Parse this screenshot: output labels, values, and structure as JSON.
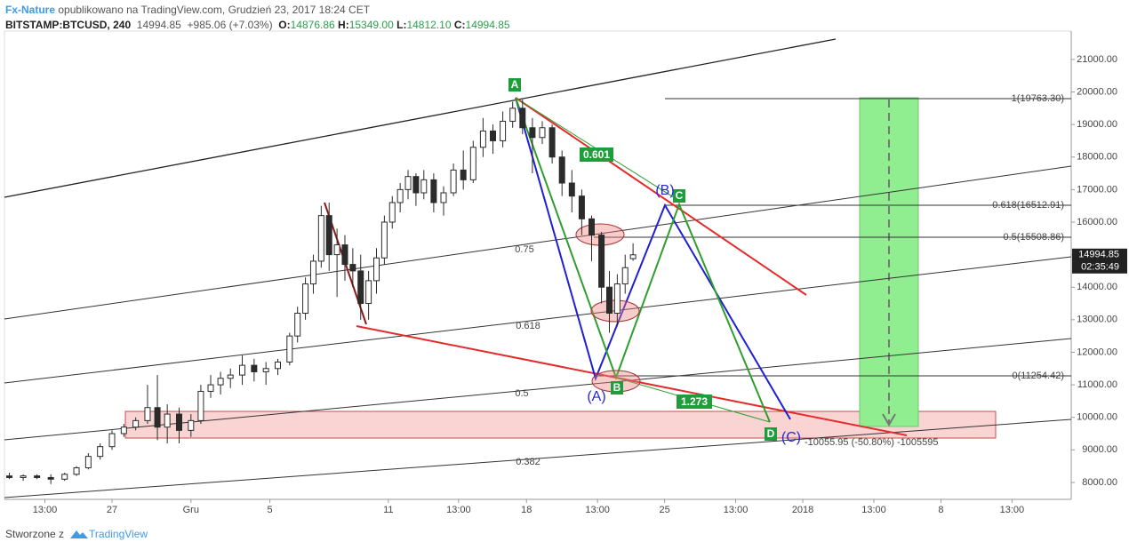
{
  "header": {
    "author": "Fx-Nature",
    "published": "opublikowano na TradingView.com, Grudzień 23, 2017 18:24 CET",
    "symbol": "BITSTAMP:BTCUSD, 240",
    "last": "14994.85",
    "change": "+985.06 (+7.03%)",
    "o_label": "O:",
    "o_value": "14876.86",
    "h_label": "H:",
    "h_value": "15349.00",
    "l_label": "L:",
    "l_value": "14812.10",
    "c_label": "C:",
    "c_value": "14994.85"
  },
  "chart_data": {
    "type": "candlestick",
    "x": [
      -9.2,
      -8.5,
      -7.8,
      -7.1,
      -6.4,
      -5.8,
      -5.2,
      -4.6,
      -4.0,
      -3.4,
      -2.8,
      -2.2,
      -1.7,
      -1.2,
      -0.6,
      0.0,
      0.5,
      1.0,
      1.5,
      2.0,
      2.6,
      3.2,
      3.8,
      4.4,
      5.0,
      5.4,
      5.8,
      6.2,
      6.6,
      7.0,
      7.4,
      7.8,
      8.2,
      8.6,
      9.0,
      9.4,
      9.8,
      10.2,
      10.6,
      11.0,
      11.4,
      11.8,
      12.3,
      12.8,
      13.3,
      13.8,
      14.3,
      14.8,
      15.3,
      15.8,
      16.3,
      16.8,
      17.3,
      17.8,
      18.3,
      18.8,
      19.3,
      19.8,
      20.3,
      20.8,
      21.2,
      21.6,
      22.0,
      22.4
    ],
    "open": [
      8200,
      8150,
      8200,
      8150,
      8100,
      8250,
      8450,
      8800,
      9100,
      9500,
      9700,
      9900,
      10300,
      9700,
      10100,
      9600,
      9900,
      10800,
      11000,
      11200,
      11300,
      11600,
      11400,
      11500,
      11700,
      12500,
      13200,
      14100,
      14800,
      16200,
      15000,
      15300,
      14700,
      14500,
      13500,
      14200,
      14900,
      16000,
      16600,
      17000,
      17400,
      16900,
      17300,
      16600,
      16900,
      17600,
      17300,
      18300,
      18800,
      18500,
      19100,
      19500,
      18900,
      18600,
      18900,
      18000,
      17200,
      16800,
      16100,
      15600,
      14000,
      13200,
      14100,
      14876.86
    ],
    "high": [
      8300,
      8250,
      8250,
      8250,
      8300,
      8500,
      8900,
      9200,
      9600,
      9800,
      10000,
      11000,
      11300,
      10400,
      10300,
      10100,
      11000,
      11300,
      11400,
      11500,
      11900,
      11800,
      11700,
      11800,
      12600,
      13400,
      14300,
      15000,
      16500,
      16600,
      15800,
      15600,
      15200,
      15000,
      14500,
      15200,
      16200,
      16800,
      17200,
      17600,
      17500,
      17600,
      17500,
      17100,
      17800,
      18200,
      18500,
      19200,
      19000,
      19400,
      19700,
      19763.3,
      19200,
      19100,
      19000,
      18200,
      17600,
      17000,
      16200,
      15700,
      14500,
      14400,
      15000,
      15349
    ],
    "low": [
      8100,
      8050,
      8100,
      7950,
      8050,
      8200,
      8400,
      8700,
      9000,
      9400,
      9600,
      9800,
      9300,
      9200,
      9200,
      9400,
      9800,
      10600,
      10700,
      10900,
      11000,
      11100,
      11000,
      11300,
      11600,
      12300,
      13000,
      13800,
      14600,
      14500,
      13700,
      14200,
      14000,
      13000,
      13000,
      13800,
      14700,
      15800,
      16300,
      16700,
      16500,
      16700,
      16300,
      16200,
      16800,
      17000,
      17200,
      18000,
      18100,
      18300,
      18900,
      18700,
      17500,
      18400,
      17800,
      16800,
      16300,
      15600,
      14800,
      13500,
      12600,
      12800,
      13800,
      14812.1
    ],
    "close": [
      8150,
      8200,
      8150,
      8100,
      8250,
      8450,
      8800,
      9100,
      9500,
      9700,
      9900,
      10300,
      9700,
      10100,
      9600,
      9900,
      10800,
      11000,
      11200,
      11300,
      11600,
      11400,
      11500,
      11700,
      12500,
      13200,
      14100,
      14800,
      16200,
      15000,
      15300,
      14700,
      14500,
      13500,
      14200,
      14900,
      16000,
      16600,
      17000,
      17400,
      16900,
      17300,
      16600,
      16900,
      17600,
      17300,
      18300,
      18800,
      18500,
      19100,
      19500,
      18900,
      18600,
      18900,
      18000,
      17200,
      16800,
      16100,
      15600,
      14000,
      13200,
      14100,
      14600,
      14994.85
    ],
    "up_color": "#ffffff",
    "down_color": "#2b2b2b",
    "wick_color": "#2b2b2b",
    "xlim": [
      -9.45,
      44.6
    ],
    "ylim": [
      7480,
      21870
    ],
    "xticks": [
      {
        "value": -7.4,
        "label": "13:00"
      },
      {
        "value": -4,
        "label": "27"
      },
      {
        "value": 0,
        "label": "Gru"
      },
      {
        "value": 4,
        "label": "5"
      },
      {
        "value": 10,
        "label": "11"
      },
      {
        "value": 13.56,
        "label": "13:00"
      },
      {
        "value": 17,
        "label": "18"
      },
      {
        "value": 20.6,
        "label": "13:00"
      },
      {
        "value": 24,
        "label": "25"
      },
      {
        "value": 27.6,
        "label": "13:00"
      },
      {
        "value": 31,
        "label": "2018"
      },
      {
        "value": 34.6,
        "label": "13:00"
      },
      {
        "value": 38,
        "label": "8"
      },
      {
        "value": 41.6,
        "label": "13:00"
      }
    ],
    "yticks": [
      {
        "value": 8000,
        "label": "8000.00"
      },
      {
        "value": 9000,
        "label": "9000.00"
      },
      {
        "value": 10000,
        "label": "10000.00"
      },
      {
        "value": 11000,
        "label": "11000.00"
      },
      {
        "value": 12000,
        "label": "12000.00"
      },
      {
        "value": 13000,
        "label": "13000.00"
      },
      {
        "value": 14000,
        "label": "14000.00"
      },
      {
        "value": 15000,
        "label": "15000.00"
      },
      {
        "value": 16000,
        "label": "16000.00"
      },
      {
        "value": 17000,
        "label": "17000.00"
      },
      {
        "value": 18000,
        "label": "18000.00"
      },
      {
        "value": 19000,
        "label": "19000.00"
      },
      {
        "value": 20000,
        "label": "20000.00"
      },
      {
        "value": 21000,
        "label": "21000.00"
      }
    ],
    "last_price": {
      "value": 14994.85,
      "countdown": "02:35:49"
    },
    "annotations": [
      "A",
      "0.601",
      "C",
      "(B)",
      "0.75",
      "0.618",
      "0.5",
      "0.382",
      "(A)",
      "B",
      "1.273",
      "D",
      "(C)",
      "-10055.95 (-50.80%) -1005595",
      "1(19763.30)",
      "0.618(16512.91)",
      "0.5(15508.86)",
      "0(11254.42)"
    ]
  },
  "footer": {
    "made_with": "Stworzone z",
    "brand": "TradingView"
  }
}
